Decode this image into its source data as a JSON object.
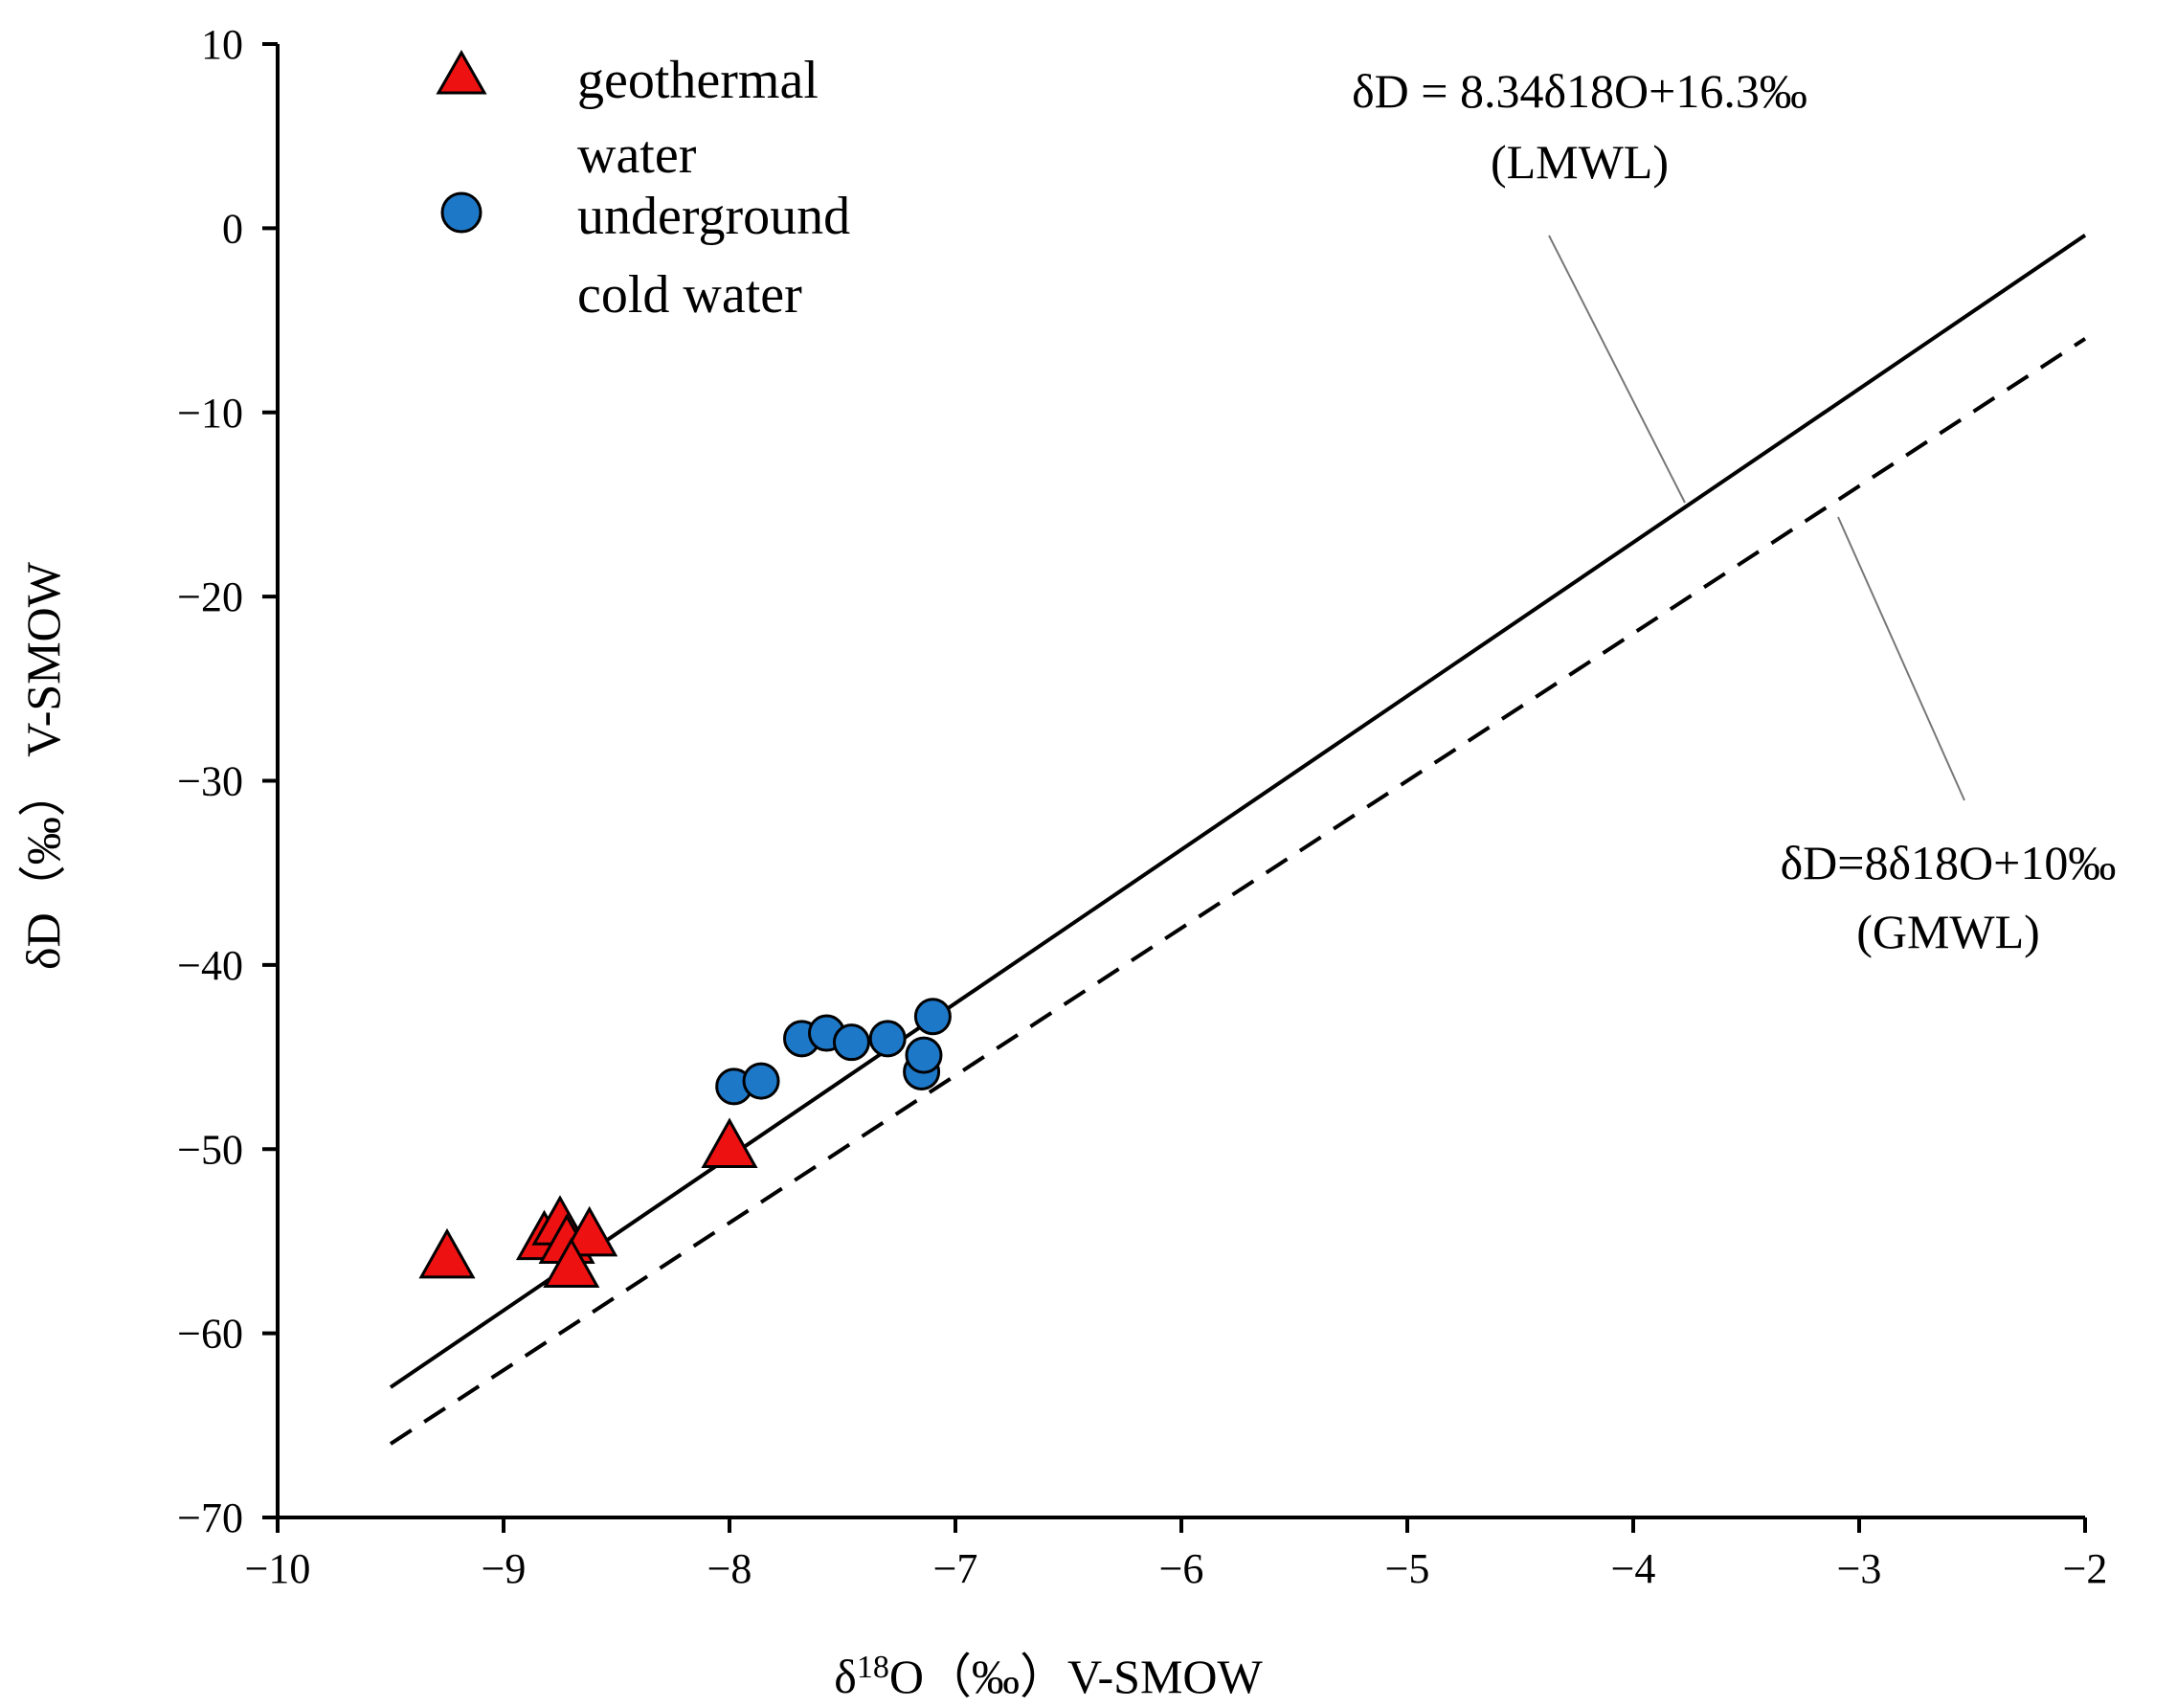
{
  "chart_data": {
    "type": "scatter",
    "xlabel": {
      "prefix": "δ",
      "sup": "18",
      "rest": "O（‰）V-SMOW"
    },
    "ylabel": "δD（‰） V-SMOW",
    "xlim": [
      -10,
      -2
    ],
    "ylim": [
      -70,
      10
    ],
    "xticks": [
      -10,
      -9,
      -8,
      -7,
      -6,
      -5,
      -4,
      -3,
      -2
    ],
    "yticks": [
      10,
      0,
      -10,
      -20,
      -30,
      -40,
      -50,
      -60,
      -70
    ],
    "tick_labels_x": [
      "−10",
      "−9",
      "−8",
      "−7",
      "−6",
      "−5",
      "−4",
      "−3",
      "−2"
    ],
    "tick_labels_y": [
      "10",
      "0",
      "−10",
      "−20",
      "−30",
      "−40",
      "−50",
      "−60",
      "−70"
    ],
    "series": [
      {
        "name": "geothermal water",
        "legend_lines": [
          "geothermal",
          "water"
        ],
        "marker": "triangle",
        "color": "#ee1111",
        "points": [
          {
            "x": -9.25,
            "y": -56.0
          },
          {
            "x": -8.82,
            "y": -55.0
          },
          {
            "x": -8.75,
            "y": -54.2
          },
          {
            "x": -8.72,
            "y": -55.2
          },
          {
            "x": -8.62,
            "y": -54.8
          },
          {
            "x": -8.7,
            "y": -56.5
          },
          {
            "x": -8.0,
            "y": -50.0
          }
        ]
      },
      {
        "name": "underground cold water",
        "legend_lines": [
          "underground",
          "cold water"
        ],
        "marker": "circle",
        "color": "#1e78c8",
        "points": [
          {
            "x": -7.98,
            "y": -46.6
          },
          {
            "x": -7.86,
            "y": -46.3
          },
          {
            "x": -7.68,
            "y": -44.0
          },
          {
            "x": -7.57,
            "y": -43.7
          },
          {
            "x": -7.46,
            "y": -44.2
          },
          {
            "x": -7.3,
            "y": -44.0
          },
          {
            "x": -7.15,
            "y": -45.8
          },
          {
            "x": -7.14,
            "y": -44.9
          },
          {
            "x": -7.1,
            "y": -42.8
          }
        ]
      }
    ],
    "lines": [
      {
        "name": "LMWL",
        "style": "solid",
        "slope": 8.34,
        "intercept": 16.3,
        "x_range": [
          -9.5,
          -2.0
        ],
        "label_lines": [
          "δD = 8.34δ18O+16.3‰",
          "(LMWL)"
        ]
      },
      {
        "name": "GMWL",
        "style": "dashed",
        "slope": 8,
        "intercept": 10,
        "x_range": [
          -9.5,
          -2.0
        ],
        "label_lines": [
          "δD=8δ18O+10‰",
          "(GMWL)"
        ]
      }
    ]
  }
}
